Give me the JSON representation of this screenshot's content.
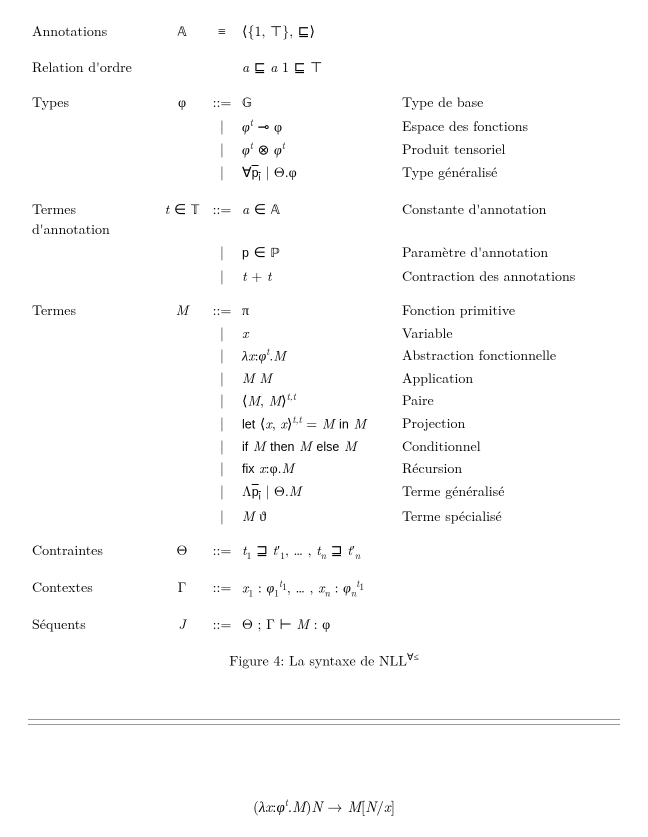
{
  "rows": {
    "annotations": {
      "label": "Annotations",
      "sym": "𝔸",
      "op": "≡",
      "prod": "⟨{1, ⊤}, ⊑⟩",
      "desc": ""
    },
    "relation": {
      "label": "Relation d'ordre",
      "sym": "",
      "op": "",
      "prod": "a ⊑ a        1 ⊑ ⊤",
      "desc": ""
    },
    "types": {
      "label": "Types",
      "sym": "φ",
      "op": "::=",
      "lines": [
        {
          "prod": "𝔾",
          "desc": "Type de base"
        },
        {
          "prod": "φᵗ ⊸ φ",
          "desc": "Espace des fonctions"
        },
        {
          "prod": "φᵗ ⊗ φᵗ",
          "desc": "Produit tensoriel"
        },
        {
          "prod": "∀p̅ᵢ | Θ.φ",
          "desc": "Type généralisé"
        }
      ]
    },
    "annterms": {
      "label": "Termes d'annotation",
      "sym": "t ∈ 𝕋",
      "op": "::=",
      "lines": [
        {
          "prod": "a ∈ 𝔸",
          "desc": "Constante d'annotation"
        },
        {
          "prod": "p ∈ ℙ",
          "desc": "Paramètre d'annotation"
        },
        {
          "prod": "t + t",
          "desc": "Contraction des annotations"
        }
      ]
    },
    "terms": {
      "label": "Termes",
      "sym": "M",
      "op": "::=",
      "lines": [
        {
          "prod": "π",
          "desc": "Fonction primitive"
        },
        {
          "prod": "x",
          "desc": "Variable"
        },
        {
          "prod": "λx:φᵗ.M",
          "desc": "Abstraction fonctionnelle"
        },
        {
          "prod": "M M",
          "desc": "Application"
        },
        {
          "prod": "⟨M, M⟩ᵗ,ᵗ",
          "desc": "Paire"
        },
        {
          "prod": "let ⟨x, x⟩ᵗ,ᵗ = M in M",
          "desc": "Projection",
          "kw": true
        },
        {
          "prod": "if M then M else M",
          "desc": "Conditionnel",
          "kw": true
        },
        {
          "prod": "fix x:φ.M",
          "desc": "Récursion",
          "kw": true
        },
        {
          "prod": "Λp̅ᵢ | Θ.M",
          "desc": "Terme généralisé"
        },
        {
          "prod": "M ϑ",
          "desc": "Terme spécialisé"
        }
      ]
    },
    "constraints": {
      "label": "Contraintes",
      "sym": "Θ",
      "op": "::=",
      "prod": "t₁ ⊒ t′₁, … , tₙ ⊒ t′ₙ",
      "desc": ""
    },
    "contexts": {
      "label": "Contextes",
      "sym": "Γ",
      "op": "::=",
      "prod": "x₁ : φ₁ᵗ¹, … , xₙ : φₙᵗ¹",
      "desc": ""
    },
    "sequents": {
      "label": "Séquents",
      "sym": "J",
      "op": "::=",
      "prod": "Θ ; Γ ⊢ M : φ",
      "desc": ""
    }
  },
  "caption": "Figure 4: La syntaxe de NLL∀≤",
  "beta_rule": "(λx:φᵗ.M)N → M[N/x]"
}
